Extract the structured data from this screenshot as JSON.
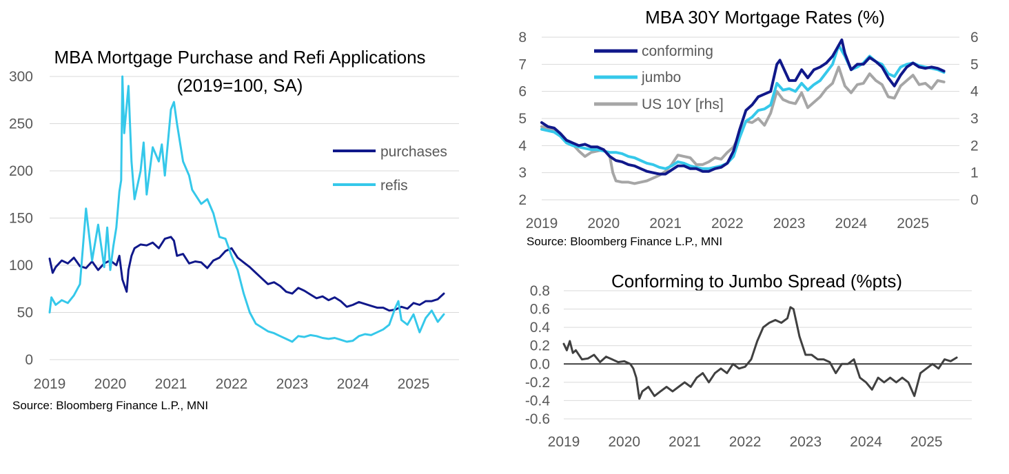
{
  "chart_data": [
    {
      "type": "line",
      "title": "MBA Mortgage Purchase and Refi Applications",
      "subtitle": "(2019=100, SA)",
      "x_ticks": [
        "2019",
        "2020",
        "2021",
        "2022",
        "2023",
        "2024",
        "2025"
      ],
      "y_ticks": [
        "0",
        "50",
        "100",
        "150",
        "200",
        "250",
        "300"
      ],
      "ylim": [
        0,
        300
      ],
      "xlim": [
        2019,
        2025.75
      ],
      "source": "Source: Bloomberg Finance L.P., MNI",
      "series": [
        {
          "name": "purchases",
          "color": "#10188a",
          "x": [
            2019.0,
            2019.05,
            2019.1,
            2019.2,
            2019.3,
            2019.4,
            2019.5,
            2019.6,
            2019.7,
            2019.8,
            2019.9,
            2020.0,
            2020.1,
            2020.15,
            2020.2,
            2020.27,
            2020.3,
            2020.35,
            2020.4,
            2020.5,
            2020.6,
            2020.7,
            2020.8,
            2020.9,
            2021.0,
            2021.05,
            2021.1,
            2021.2,
            2021.3,
            2021.4,
            2021.5,
            2021.6,
            2021.7,
            2021.8,
            2021.9,
            2022.0,
            2022.05,
            2022.1,
            2022.2,
            2022.3,
            2022.4,
            2022.5,
            2022.6,
            2022.7,
            2022.8,
            2022.9,
            2023.0,
            2023.1,
            2023.2,
            2023.3,
            2023.4,
            2023.5,
            2023.6,
            2023.7,
            2023.8,
            2023.9,
            2024.0,
            2024.1,
            2024.2,
            2024.3,
            2024.4,
            2024.5,
            2024.6,
            2024.7,
            2024.8,
            2024.9,
            2025.0,
            2025.1,
            2025.2,
            2025.3,
            2025.4,
            2025.5
          ],
          "values": [
            107,
            92,
            98,
            105,
            102,
            108,
            99,
            97,
            104,
            95,
            102,
            105,
            100,
            110,
            85,
            72,
            95,
            110,
            118,
            122,
            121,
            124,
            118,
            128,
            130,
            126,
            110,
            112,
            102,
            104,
            103,
            97,
            105,
            108,
            115,
            118,
            113,
            108,
            103,
            98,
            92,
            86,
            80,
            82,
            78,
            72,
            70,
            76,
            73,
            69,
            65,
            67,
            63,
            66,
            62,
            56,
            58,
            61,
            59,
            57,
            55,
            55,
            52,
            53,
            56,
            54,
            60,
            58,
            62,
            62,
            64,
            70
          ]
        },
        {
          "name": "refis",
          "color": "#35c8ea",
          "x": [
            2019.0,
            2019.03,
            2019.1,
            2019.2,
            2019.3,
            2019.4,
            2019.5,
            2019.55,
            2019.6,
            2019.7,
            2019.8,
            2019.9,
            2019.95,
            2020.0,
            2020.05,
            2020.1,
            2020.15,
            2020.18,
            2020.2,
            2020.23,
            2020.3,
            2020.35,
            2020.4,
            2020.5,
            2020.55,
            2020.6,
            2020.7,
            2020.8,
            2020.85,
            2020.9,
            2021.0,
            2021.05,
            2021.1,
            2021.2,
            2021.3,
            2021.35,
            2021.4,
            2021.5,
            2021.6,
            2021.7,
            2021.8,
            2021.9,
            2022.0,
            2022.1,
            2022.2,
            2022.3,
            2022.4,
            2022.5,
            2022.6,
            2022.7,
            2022.8,
            2022.9,
            2023.0,
            2023.1,
            2023.2,
            2023.3,
            2023.4,
            2023.5,
            2023.6,
            2023.7,
            2023.8,
            2023.9,
            2024.0,
            2024.1,
            2024.2,
            2024.3,
            2024.4,
            2024.5,
            2024.6,
            2024.7,
            2024.75,
            2024.8,
            2024.9,
            2025.0,
            2025.1,
            2025.2,
            2025.3,
            2025.4,
            2025.5
          ],
          "values": [
            50,
            66,
            58,
            63,
            60,
            68,
            80,
            120,
            160,
            105,
            143,
            98,
            140,
            95,
            120,
            140,
            178,
            190,
            300,
            240,
            290,
            210,
            170,
            200,
            230,
            175,
            225,
            210,
            228,
            195,
            265,
            273,
            250,
            210,
            195,
            180,
            175,
            165,
            170,
            155,
            130,
            128,
            110,
            95,
            70,
            50,
            38,
            34,
            30,
            28,
            25,
            22,
            19,
            25,
            24,
            26,
            25,
            23,
            22,
            23,
            21,
            19,
            20,
            25,
            27,
            26,
            29,
            32,
            37,
            55,
            62,
            42,
            37,
            48,
            29,
            44,
            52,
            40,
            48
          ]
        }
      ]
    },
    {
      "type": "line",
      "title": "MBA 30Y Mortgage Rates (%)",
      "x_ticks": [
        "2019",
        "2020",
        "2021",
        "2022",
        "2023",
        "2024",
        "2025"
      ],
      "y_ticks": [
        "2",
        "3",
        "4",
        "5",
        "6",
        "7",
        "8"
      ],
      "y2_ticks": [
        "0",
        "1",
        "2",
        "3",
        "4",
        "5",
        "6"
      ],
      "ylim": [
        2,
        8
      ],
      "y2lim": [
        0,
        6
      ],
      "xlim": [
        2019,
        2025.75
      ],
      "source": "Source: Bloomberg Finance L.P., MNI",
      "series": [
        {
          "name": "conforming",
          "color": "#10188a",
          "axis": "left",
          "x": [
            2019.0,
            2019.1,
            2019.2,
            2019.3,
            2019.4,
            2019.5,
            2019.6,
            2019.7,
            2019.8,
            2019.9,
            2020.0,
            2020.1,
            2020.2,
            2020.3,
            2020.4,
            2020.5,
            2020.6,
            2020.7,
            2020.8,
            2020.9,
            2021.0,
            2021.1,
            2021.2,
            2021.3,
            2021.4,
            2021.5,
            2021.6,
            2021.7,
            2021.8,
            2021.9,
            2022.0,
            2022.1,
            2022.2,
            2022.3,
            2022.4,
            2022.5,
            2022.6,
            2022.7,
            2022.8,
            2022.85,
            2022.9,
            2023.0,
            2023.1,
            2023.2,
            2023.3,
            2023.4,
            2023.5,
            2023.6,
            2023.7,
            2023.8,
            2023.85,
            2023.9,
            2024.0,
            2024.1,
            2024.2,
            2024.3,
            2024.4,
            2024.5,
            2024.6,
            2024.7,
            2024.8,
            2024.9,
            2025.0,
            2025.1,
            2025.2,
            2025.3,
            2025.4,
            2025.5
          ],
          "values": [
            4.85,
            4.7,
            4.65,
            4.45,
            4.2,
            4.1,
            4.0,
            4.05,
            3.95,
            3.95,
            3.85,
            3.6,
            3.45,
            3.4,
            3.3,
            3.25,
            3.15,
            3.05,
            3.0,
            2.95,
            2.95,
            3.1,
            3.25,
            3.25,
            3.15,
            3.15,
            3.05,
            3.05,
            3.15,
            3.2,
            3.35,
            3.8,
            4.6,
            5.3,
            5.5,
            5.8,
            5.9,
            6.0,
            7.0,
            7.15,
            6.9,
            6.4,
            6.4,
            6.8,
            6.5,
            6.8,
            6.9,
            7.05,
            7.3,
            7.7,
            7.9,
            7.4,
            6.8,
            7.0,
            7.0,
            7.25,
            7.1,
            6.9,
            6.5,
            6.2,
            6.6,
            6.9,
            7.05,
            6.9,
            6.85,
            6.9,
            6.85,
            6.75
          ]
        },
        {
          "name": "jumbo",
          "color": "#35c8ea",
          "axis": "left",
          "x": [
            2019.0,
            2019.1,
            2019.2,
            2019.3,
            2019.4,
            2019.5,
            2019.6,
            2019.7,
            2019.8,
            2019.9,
            2020.0,
            2020.1,
            2020.2,
            2020.3,
            2020.4,
            2020.5,
            2020.6,
            2020.7,
            2020.8,
            2020.9,
            2021.0,
            2021.1,
            2021.2,
            2021.3,
            2021.4,
            2021.5,
            2021.6,
            2021.7,
            2021.8,
            2021.9,
            2022.0,
            2022.1,
            2022.2,
            2022.3,
            2022.4,
            2022.5,
            2022.6,
            2022.7,
            2022.8,
            2022.9,
            2023.0,
            2023.1,
            2023.2,
            2023.3,
            2023.4,
            2023.5,
            2023.6,
            2023.7,
            2023.8,
            2023.9,
            2024.0,
            2024.1,
            2024.2,
            2024.3,
            2024.4,
            2024.5,
            2024.6,
            2024.7,
            2024.8,
            2024.9,
            2025.0,
            2025.1,
            2025.2,
            2025.3,
            2025.4,
            2025.5
          ],
          "values": [
            4.6,
            4.55,
            4.5,
            4.35,
            4.1,
            4.0,
            3.95,
            3.9,
            3.85,
            3.85,
            3.8,
            3.75,
            3.75,
            3.7,
            3.6,
            3.55,
            3.45,
            3.35,
            3.3,
            3.2,
            3.15,
            3.25,
            3.4,
            3.35,
            3.25,
            3.2,
            3.15,
            3.15,
            3.2,
            3.25,
            3.35,
            3.6,
            4.3,
            4.9,
            5.05,
            5.3,
            5.35,
            5.5,
            6.3,
            6.05,
            6.1,
            6.0,
            6.3,
            6.05,
            6.25,
            6.4,
            6.7,
            7.0,
            7.7,
            7.3,
            6.8,
            6.9,
            7.05,
            7.3,
            7.1,
            7.0,
            6.65,
            6.55,
            6.9,
            7.0,
            7.05,
            6.95,
            6.9,
            6.85,
            6.8,
            6.7
          ]
        },
        {
          "name": "US 10Y [rhs]",
          "color": "#a6a6a6",
          "axis": "right",
          "x": [
            2019.0,
            2019.1,
            2019.2,
            2019.3,
            2019.4,
            2019.5,
            2019.6,
            2019.7,
            2019.8,
            2019.9,
            2020.0,
            2020.1,
            2020.15,
            2020.2,
            2020.3,
            2020.4,
            2020.5,
            2020.6,
            2020.7,
            2020.8,
            2020.9,
            2021.0,
            2021.1,
            2021.2,
            2021.3,
            2021.4,
            2021.5,
            2021.6,
            2021.7,
            2021.8,
            2021.9,
            2022.0,
            2022.1,
            2022.2,
            2022.3,
            2022.4,
            2022.5,
            2022.6,
            2022.7,
            2022.8,
            2022.9,
            2023.0,
            2023.1,
            2023.2,
            2023.3,
            2023.4,
            2023.5,
            2023.6,
            2023.7,
            2023.8,
            2023.9,
            2024.0,
            2024.1,
            2024.2,
            2024.3,
            2024.4,
            2024.5,
            2024.6,
            2024.7,
            2024.8,
            2024.9,
            2025.0,
            2025.1,
            2025.2,
            2025.3,
            2025.4,
            2025.5
          ],
          "values": [
            2.7,
            2.65,
            2.55,
            2.45,
            2.2,
            2.05,
            1.8,
            1.6,
            1.75,
            1.8,
            1.85,
            1.6,
            1.0,
            0.7,
            0.65,
            0.65,
            0.6,
            0.65,
            0.7,
            0.8,
            0.9,
            1.05,
            1.3,
            1.65,
            1.6,
            1.55,
            1.3,
            1.3,
            1.4,
            1.55,
            1.5,
            1.75,
            1.95,
            2.4,
            2.9,
            2.85,
            3.0,
            2.75,
            3.2,
            4.0,
            3.7,
            3.6,
            3.55,
            3.95,
            3.4,
            3.6,
            3.8,
            4.1,
            4.3,
            4.9,
            4.2,
            3.95,
            4.25,
            4.3,
            4.65,
            4.4,
            4.25,
            3.8,
            3.75,
            4.2,
            4.4,
            4.6,
            4.25,
            4.3,
            4.1,
            4.4,
            4.35
          ]
        }
      ]
    },
    {
      "type": "line",
      "title": "Conforming to Jumbo Spread (%pts)",
      "x_ticks": [
        "2019",
        "2020",
        "2021",
        "2022",
        "2023",
        "2024",
        "2025"
      ],
      "y_ticks": [
        "0.8",
        "0.6",
        "0.4",
        "0.2",
        "0.0",
        "-0.2",
        "-0.4",
        "-0.6"
      ],
      "ylim": [
        -0.6,
        0.8
      ],
      "xlim": [
        2019,
        2025.75
      ],
      "series": [
        {
          "name": "spread",
          "color": "#404040",
          "x": [
            2019.0,
            2019.05,
            2019.1,
            2019.15,
            2019.2,
            2019.3,
            2019.4,
            2019.5,
            2019.6,
            2019.7,
            2019.8,
            2019.9,
            2020.0,
            2020.1,
            2020.15,
            2020.2,
            2020.25,
            2020.3,
            2020.4,
            2020.5,
            2020.6,
            2020.7,
            2020.8,
            2020.9,
            2021.0,
            2021.1,
            2021.2,
            2021.3,
            2021.4,
            2021.5,
            2021.6,
            2021.7,
            2021.8,
            2021.9,
            2022.0,
            2022.1,
            2022.2,
            2022.3,
            2022.4,
            2022.5,
            2022.6,
            2022.7,
            2022.75,
            2022.8,
            2022.85,
            2022.9,
            2023.0,
            2023.1,
            2023.2,
            2023.3,
            2023.4,
            2023.5,
            2023.6,
            2023.7,
            2023.8,
            2023.9,
            2024.0,
            2024.1,
            2024.2,
            2024.3,
            2024.4,
            2024.5,
            2024.6,
            2024.7,
            2024.8,
            2024.9,
            2025.0,
            2025.1,
            2025.2,
            2025.3,
            2025.4,
            2025.5
          ],
          "values": [
            0.22,
            0.15,
            0.25,
            0.12,
            0.15,
            0.05,
            0.06,
            0.1,
            0.02,
            0.08,
            0.05,
            0.02,
            0.03,
            0.0,
            -0.05,
            -0.15,
            -0.38,
            -0.3,
            -0.25,
            -0.35,
            -0.3,
            -0.25,
            -0.3,
            -0.25,
            -0.2,
            -0.25,
            -0.15,
            -0.1,
            -0.2,
            -0.1,
            -0.05,
            -0.1,
            0.0,
            -0.05,
            -0.03,
            0.05,
            0.25,
            0.4,
            0.45,
            0.48,
            0.45,
            0.5,
            0.62,
            0.6,
            0.45,
            0.3,
            0.1,
            0.1,
            0.05,
            0.05,
            0.02,
            -0.1,
            0.0,
            0.0,
            0.05,
            -0.15,
            -0.2,
            -0.28,
            -0.15,
            -0.2,
            -0.15,
            -0.2,
            -0.15,
            -0.2,
            -0.35,
            -0.1,
            -0.05,
            0.0,
            -0.05,
            0.05,
            0.03,
            0.07
          ]
        }
      ]
    }
  ]
}
